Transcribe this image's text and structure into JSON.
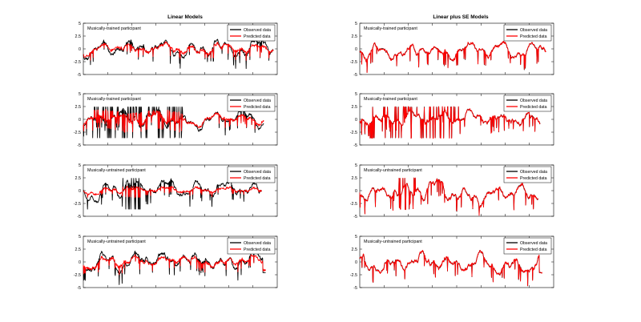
{
  "figure": {
    "col_titles": [
      "Linear Models",
      "Linear plus SE Models"
    ],
    "legend": [
      "Observed data",
      "Predicted data"
    ],
    "colors": {
      "observed": "#000000",
      "predicted": "#ff0000",
      "axes": "#000000"
    }
  },
  "chart_data": [
    {
      "type": "line",
      "panel_label": "Musically-trained participant",
      "ylim": [
        -5,
        5
      ],
      "yticks": [
        5,
        2.5,
        0,
        -2.5,
        -5
      ],
      "xticks_count": 8,
      "grid": false,
      "legend_position": "top-right",
      "series": [
        {
          "name": "Observed data",
          "color": "#000000"
        },
        {
          "name": "Predicted data",
          "color": "#ff0000"
        }
      ],
      "x_extent": [
        0,
        0.98
      ],
      "seed": 11,
      "prediction_quality": "rough",
      "noise": 0.6,
      "spike_zone": null,
      "trailing_drop": false
    },
    {
      "type": "line",
      "panel_label": "Musically-trained participant",
      "ylim": [
        -5,
        5
      ],
      "yticks": [
        5,
        2.5,
        0,
        -2.5,
        -5
      ],
      "xticks_count": 8,
      "grid": false,
      "legend_position": "top-right",
      "series": [
        {
          "name": "Observed data",
          "color": "#000000"
        },
        {
          "name": "Predicted data",
          "color": "#ff0000"
        }
      ],
      "x_extent": [
        0,
        0.96
      ],
      "seed": 23,
      "prediction_quality": "close",
      "noise": 0.5,
      "spike_zone": null,
      "trailing_drop": false
    },
    {
      "type": "line",
      "panel_label": "Musically-trained participant",
      "ylim": [
        -5,
        5
      ],
      "yticks": [
        5,
        2.5,
        0,
        -2.5,
        -5
      ],
      "xticks_count": 8,
      "grid": false,
      "legend_position": "top-right",
      "series": [
        {
          "name": "Observed data",
          "color": "#000000"
        },
        {
          "name": "Predicted data",
          "color": "#ff0000"
        }
      ],
      "x_extent": [
        0,
        0.93
      ],
      "seed": 37,
      "prediction_quality": "rough",
      "noise": 0.5,
      "spike_zone": [
        0.05,
        0.55
      ],
      "trailing_drop": false
    },
    {
      "type": "line",
      "panel_label": "Musically-trained participant",
      "ylim": [
        -5,
        5
      ],
      "yticks": [
        5,
        2.5,
        0,
        -2.5,
        -5
      ],
      "xticks_count": 8,
      "grid": false,
      "legend_position": "top-right",
      "series": [
        {
          "name": "Observed data",
          "color": "#000000"
        },
        {
          "name": "Predicted data",
          "color": "#ff0000"
        }
      ],
      "x_extent": [
        0,
        0.93
      ],
      "seed": 41,
      "prediction_quality": "close",
      "noise": 0.5,
      "spike_zone": [
        0.05,
        0.55
      ],
      "trailing_drop": false
    },
    {
      "type": "line",
      "panel_label": "Musically-untrained participant",
      "ylim": [
        -5,
        5
      ],
      "yticks": [
        5,
        2.5,
        0,
        -2.5,
        -5
      ],
      "xticks_count": 8,
      "grid": false,
      "legend_position": "top-right",
      "series": [
        {
          "name": "Observed data",
          "color": "#000000"
        },
        {
          "name": "Predicted data",
          "color": "#ff0000"
        }
      ],
      "x_extent": [
        0,
        0.92
      ],
      "seed": 53,
      "prediction_quality": "flat",
      "noise": 0.55,
      "spike_zone": [
        0.22,
        0.32
      ],
      "trailing_drop": false
    },
    {
      "type": "line",
      "panel_label": "Musically-untrained participant",
      "ylim": [
        -5,
        5
      ],
      "yticks": [
        5,
        2.5,
        0,
        -2.5,
        -5
      ],
      "xticks_count": 8,
      "grid": false,
      "legend_position": "top-right",
      "series": [
        {
          "name": "Observed data",
          "color": "#000000"
        },
        {
          "name": "Predicted data",
          "color": "#ff0000"
        }
      ],
      "x_extent": [
        0,
        0.92
      ],
      "seed": 67,
      "prediction_quality": "close",
      "noise": 0.55,
      "spike_zone": [
        0.22,
        0.32
      ],
      "trailing_drop": false
    },
    {
      "type": "line",
      "panel_label": "Musically-untrained participant",
      "ylim": [
        -5,
        5
      ],
      "yticks": [
        5,
        2.5,
        0,
        -2.5,
        -5
      ],
      "xticks_count": 8,
      "grid": false,
      "legend_position": "top-right",
      "series": [
        {
          "name": "Observed data",
          "color": "#000000"
        },
        {
          "name": "Predicted data",
          "color": "#ff0000"
        }
      ],
      "x_extent": [
        0,
        0.94
      ],
      "seed": 79,
      "prediction_quality": "rough",
      "noise": 0.6,
      "spike_zone": null,
      "trailing_drop": true
    },
    {
      "type": "line",
      "panel_label": "Musically-untrained participant",
      "ylim": [
        -5,
        5
      ],
      "yticks": [
        5,
        2.5,
        0,
        -2.5,
        -5
      ],
      "xticks_count": 8,
      "grid": false,
      "legend_position": "top-right",
      "series": [
        {
          "name": "Observed data",
          "color": "#000000"
        },
        {
          "name": "Predicted data",
          "color": "#ff0000"
        }
      ],
      "x_extent": [
        0,
        0.94
      ],
      "seed": 83,
      "prediction_quality": "close",
      "noise": 0.55,
      "spike_zone": null,
      "trailing_drop": true
    }
  ]
}
